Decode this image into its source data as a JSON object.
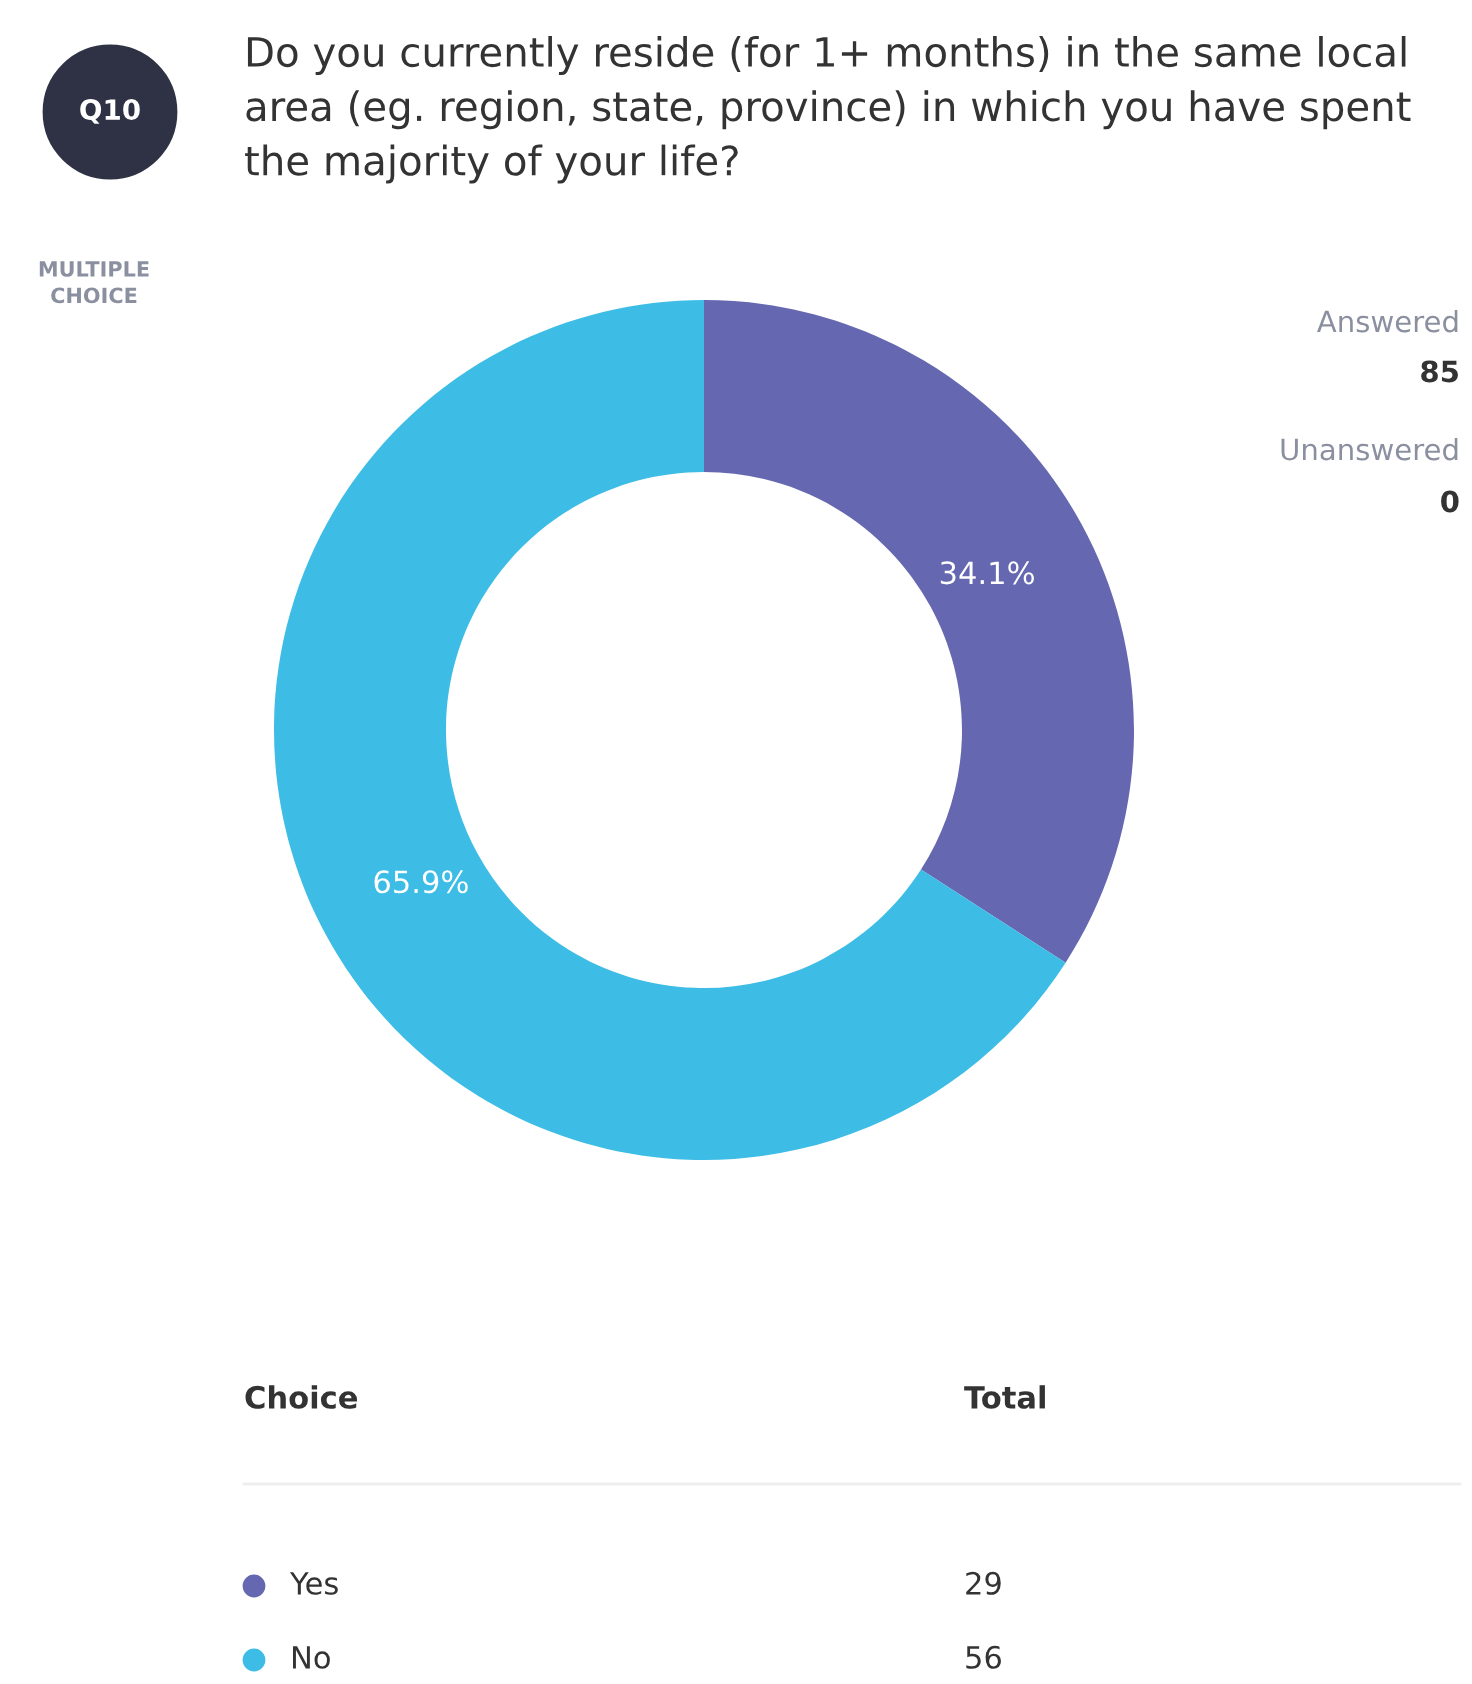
{
  "chart_data": {
    "type": "donut",
    "title": "Do you currently reside (for 1+ months) in the same local area (eg. region, state, province) in which you have spent the majority of your life?",
    "categories": [
      "Yes",
      "No"
    ],
    "values": [
      34.1,
      65.9
    ],
    "colors": [
      "#6568b1",
      "#3dbde6"
    ],
    "value_labels": [
      "34.1%",
      "65.9%"
    ],
    "legend": "bottom",
    "annotations": [
      "Q10",
      "MULTIPLE\nCHOICE",
      "Answered",
      "85",
      "Unanswered",
      "0",
      "Choice",
      "Total",
      "29",
      "56"
    ]
  }
}
